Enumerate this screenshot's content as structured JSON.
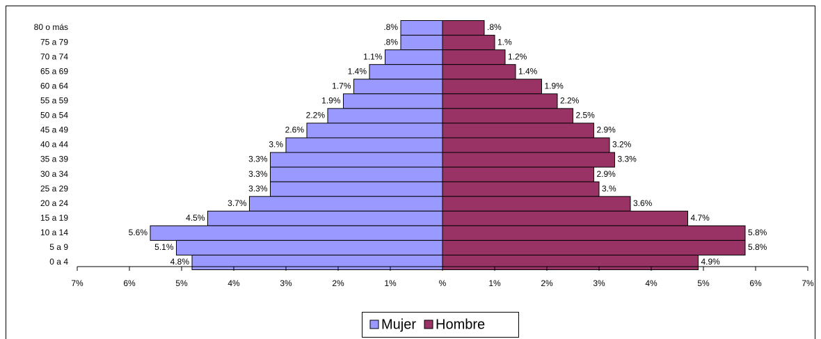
{
  "chart_data": {
    "type": "pyramid",
    "categories": [
      "80 o más",
      "75 a 79",
      "70 a 74",
      "65 a 69",
      "60 a 64",
      "55 a 59",
      "50 a 54",
      "45 a 49",
      "40 a 44",
      "35 a 39",
      "30 a 34",
      "25 a 29",
      "20 a 24",
      "15 a 19",
      "10 a 14",
      "5 a 9",
      "0 a 4"
    ],
    "series": [
      {
        "name": "Mujer",
        "color": "#9999ff",
        "side": "left",
        "values": [
          0.8,
          0.8,
          1.1,
          1.4,
          1.7,
          1.9,
          2.2,
          2.6,
          3.0,
          3.3,
          3.3,
          3.3,
          3.7,
          4.5,
          5.6,
          5.1,
          4.8
        ],
        "value_labels": [
          ".8%",
          ".8%",
          "1.1%",
          "1.4%",
          "1.7%",
          "1.9%",
          "2.2%",
          "2.6%",
          "3.%",
          "3.3%",
          "3.3%",
          "3.3%",
          "3.7%",
          "4.5%",
          "5.6%",
          "5.1%",
          "4.8%"
        ]
      },
      {
        "name": "Hombre",
        "color": "#993366",
        "side": "right",
        "values": [
          0.8,
          1.0,
          1.2,
          1.4,
          1.9,
          2.2,
          2.5,
          2.9,
          3.2,
          3.3,
          2.9,
          3.0,
          3.6,
          4.7,
          5.8,
          5.8,
          4.9
        ],
        "value_labels": [
          ".8%",
          "1.%",
          "1.2%",
          "1.4%",
          "1.9%",
          "2.2%",
          "2.5%",
          "2.9%",
          "3.2%",
          "3.3%",
          "2.9%",
          "3.%",
          "3.6%",
          "4.7%",
          "5.8%",
          "5.8%",
          "4.9%"
        ]
      }
    ],
    "xlim": [
      -7,
      7
    ],
    "xticks": [
      {
        "value": -7,
        "label": "7%"
      },
      {
        "value": -6,
        "label": "6%"
      },
      {
        "value": -5,
        "label": "5%"
      },
      {
        "value": -4,
        "label": "4%"
      },
      {
        "value": -3,
        "label": "3%"
      },
      {
        "value": -2,
        "label": "2%"
      },
      {
        "value": -1,
        "label": "1%"
      },
      {
        "value": 0,
        "label": "%"
      },
      {
        "value": 1,
        "label": "1%"
      },
      {
        "value": 2,
        "label": "2%"
      },
      {
        "value": 3,
        "label": "3%"
      },
      {
        "value": 4,
        "label": "4%"
      },
      {
        "value": 5,
        "label": "5%"
      },
      {
        "value": 6,
        "label": "6%"
      },
      {
        "value": 7,
        "label": "7%"
      }
    ],
    "legend": "bottom"
  }
}
